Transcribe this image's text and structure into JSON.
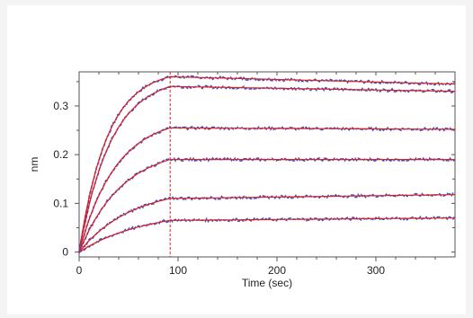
{
  "chart_data": {
    "type": "line",
    "title": "",
    "xlabel": "Time (sec)",
    "ylabel": "nm",
    "xlim": [
      0,
      380
    ],
    "ylim": [
      -0.01,
      0.37
    ],
    "xticks": [
      0,
      100,
      200,
      300
    ],
    "yticks": [
      0,
      0.1,
      0.2,
      0.3
    ],
    "xtick_labels": [
      "0",
      "100",
      "200",
      "300"
    ],
    "ytick_labels": [
      "0",
      "0.1",
      "0.2",
      "0.3"
    ],
    "grid": false,
    "legend": null,
    "phase_boundary_x": 92,
    "colors": {
      "measured": "#3355cc",
      "fit": "#e02020",
      "frame": "#555555",
      "boundary": "#e02020"
    },
    "association_end_x": 92,
    "series": [
      {
        "kind": "association-dissociation",
        "plateau": 0.36,
        "end": 0.345
      },
      {
        "kind": "association-dissociation",
        "plateau": 0.34,
        "end": 0.33
      },
      {
        "kind": "association-dissociation",
        "plateau": 0.255,
        "end": 0.252
      },
      {
        "kind": "association-dissociation",
        "plateau": 0.19,
        "end": 0.19
      },
      {
        "kind": "association-dissociation",
        "plateau": 0.11,
        "end": 0.118
      },
      {
        "kind": "association-dissociation",
        "plateau": 0.065,
        "end": 0.07
      }
    ]
  }
}
